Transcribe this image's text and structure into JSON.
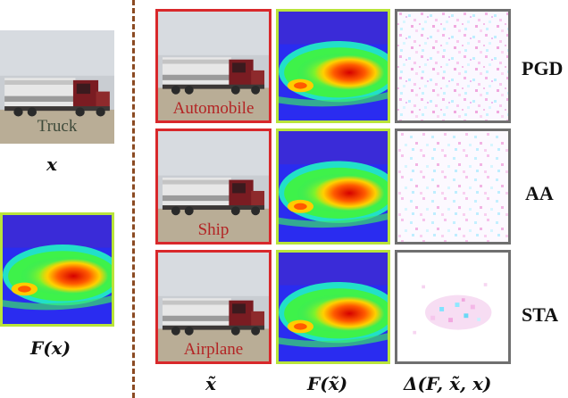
{
  "left": {
    "input_caption": "Truck",
    "input_label": "x",
    "heatmap_label": "F(x)"
  },
  "rows": [
    {
      "method": "PGD",
      "adv_label": "Automobile"
    },
    {
      "method": "AA",
      "adv_label": "Ship"
    },
    {
      "method": "STA",
      "adv_label": "Airplane"
    }
  ],
  "columns": {
    "adv_image": "x̃",
    "adv_heatmap": "F(x̃)",
    "difference": "Δ(F, x̃, x)"
  },
  "colors": {
    "divider": "#8b4a22",
    "adv_border": "#d8282b",
    "diff_border": "#6f6f6f",
    "heatmap_border": "#b9e43a"
  }
}
